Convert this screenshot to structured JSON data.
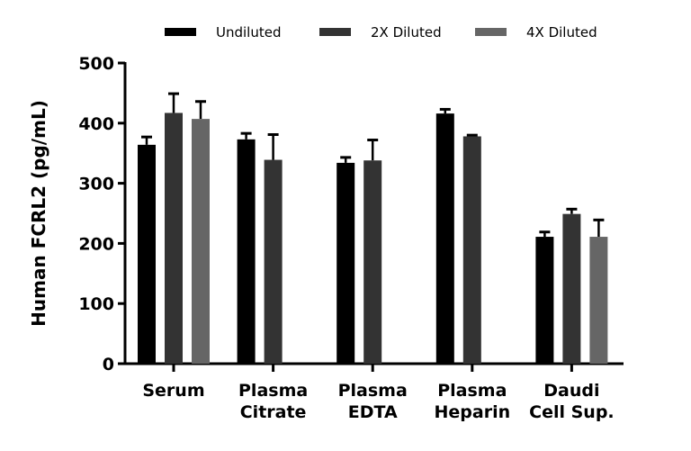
{
  "chart_data": {
    "type": "bar",
    "title": "",
    "xlabel": "",
    "ylabel": "Human FCRL2 (pg/mL)",
    "ylim": [
      0,
      500
    ],
    "yticks": [
      0,
      100,
      200,
      300,
      400,
      500
    ],
    "grid": false,
    "legend_position": "top",
    "categories": [
      [
        "Serum"
      ],
      [
        "Plasma",
        "Citrate"
      ],
      [
        "Plasma",
        "EDTA"
      ],
      [
        "Plasma",
        "Heparin"
      ],
      [
        "Daudi",
        "Cell Sup."
      ]
    ],
    "series": [
      {
        "name": "Undiluted",
        "color": "#000000",
        "values": [
          364,
          373,
          334,
          416,
          211
        ],
        "error": [
          13,
          10,
          9,
          7,
          8
        ]
      },
      {
        "name": "2X Diluted",
        "color": "#333333",
        "values": [
          417,
          339,
          338,
          378,
          249
        ],
        "error": [
          32,
          42,
          34,
          2,
          8
        ]
      },
      {
        "name": "4X Diluted",
        "color": "#666666",
        "values": [
          407,
          null,
          null,
          null,
          211
        ],
        "error": [
          29,
          null,
          null,
          null,
          28
        ]
      }
    ]
  }
}
